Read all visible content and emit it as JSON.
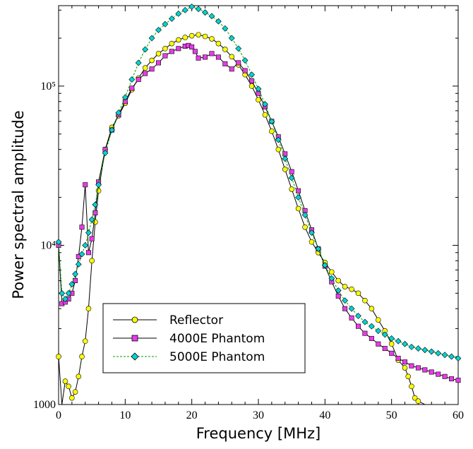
{
  "chart_data": {
    "type": "line",
    "xlabel": "Frequency [MHz]",
    "ylabel": "Power spectral amplitude",
    "xlim": [
      0,
      60
    ],
    "ylim": [
      1000,
      320000
    ],
    "y_scale": "log",
    "x_ticks": [
      0,
      10,
      20,
      30,
      40,
      50,
      60
    ],
    "x_tick_labels": [
      "0",
      "10",
      "20",
      "30",
      "40",
      "50",
      "60"
    ],
    "y_ticks": [
      1000,
      10000,
      100000
    ],
    "y_tick_labels": [
      "1000",
      "10⁴",
      "10⁵"
    ],
    "grid": false,
    "legend_position": "lower-left",
    "series": [
      {
        "name": "Reflector",
        "color": "#ffff00",
        "marker": "circle",
        "x": [
          0,
          0.5,
          1,
          1.5,
          2,
          2.5,
          3,
          3.5,
          4,
          4.5,
          5,
          5.5,
          6,
          7,
          8,
          9,
          10,
          11,
          12,
          13,
          14,
          15,
          16,
          17,
          18,
          19,
          20,
          21,
          22,
          23,
          24,
          25,
          26,
          27,
          28,
          29,
          30,
          31,
          32,
          33,
          34,
          35,
          36,
          37,
          38,
          39,
          40,
          41,
          42,
          43,
          44,
          45,
          46,
          47,
          48,
          49,
          50,
          51,
          52,
          52.5,
          53,
          53.5,
          54,
          55,
          56
        ],
        "y": [
          2000,
          900,
          1400,
          1300,
          1100,
          1200,
          1500,
          2000,
          2500,
          4000,
          8000,
          14000,
          22000,
          40000,
          55000,
          65000,
          78000,
          95000,
          112000,
          130000,
          145000,
          160000,
          172000,
          185000,
          195000,
          202000,
          207000,
          210000,
          205000,
          198000,
          185000,
          170000,
          153000,
          136000,
          118000,
          100000,
          82000,
          66000,
          52000,
          40000,
          30000,
          22500,
          17000,
          13000,
          10500,
          9000,
          7800,
          6800,
          6000,
          5500,
          5300,
          5000,
          4500,
          4000,
          3400,
          2900,
          2400,
          1900,
          1700,
          1500,
          1300,
          1100,
          1050,
          950,
          900
        ]
      },
      {
        "name": "4000E Phantom",
        "color": "#e83be8",
        "marker": "square",
        "x": [
          0,
          0.5,
          1,
          1.5,
          2,
          2.5,
          3,
          3.5,
          4,
          4.5,
          5,
          5.5,
          6,
          7,
          8,
          9,
          10,
          11,
          12,
          13,
          14,
          15,
          16,
          17,
          18,
          19,
          19.5,
          20,
          20.5,
          21,
          22,
          23,
          24,
          25,
          26,
          27,
          28,
          29,
          30,
          31,
          32,
          33,
          34,
          35,
          36,
          37,
          38,
          39,
          40,
          41,
          42,
          43,
          44,
          45,
          46,
          47,
          48,
          49,
          50,
          51,
          52,
          53,
          54,
          55,
          56,
          57,
          58,
          59,
          60
        ],
        "y": [
          10000,
          4300,
          4400,
          4600,
          5000,
          6000,
          8500,
          13000,
          24000,
          9000,
          11000,
          16000,
          25000,
          40000,
          53000,
          66000,
          80000,
          97000,
          110000,
          120000,
          128000,
          140000,
          155000,
          165000,
          172000,
          178000,
          180000,
          176000,
          165000,
          150000,
          152000,
          160000,
          152000,
          138000,
          128000,
          140000,
          125000,
          108000,
          90000,
          74000,
          60000,
          48000,
          37500,
          29000,
          22000,
          16500,
          12500,
          9500,
          7400,
          5900,
          4800,
          4000,
          3500,
          3100,
          2800,
          2600,
          2400,
          2250,
          2100,
          1950,
          1850,
          1750,
          1700,
          1650,
          1600,
          1550,
          1500,
          1450,
          1420
        ]
      },
      {
        "name": "5000E Phantom",
        "color": "#00d4d4",
        "marker": "diamond",
        "x": [
          0,
          0.5,
          1,
          1.5,
          2,
          2.5,
          3,
          3.5,
          4,
          4.5,
          5,
          5.5,
          6,
          7,
          8,
          9,
          10,
          11,
          12,
          13,
          14,
          15,
          16,
          17,
          18,
          19,
          20,
          21,
          22,
          23,
          24,
          25,
          26,
          27,
          28,
          29,
          30,
          31,
          32,
          33,
          34,
          35,
          36,
          37,
          38,
          39,
          40,
          41,
          42,
          43,
          44,
          45,
          46,
          47,
          48,
          49,
          50,
          51,
          52,
          53,
          54,
          55,
          56,
          57,
          58,
          59,
          60
        ],
        "y": [
          10500,
          5000,
          4600,
          5000,
          5700,
          6600,
          7600,
          8800,
          10000,
          12000,
          14500,
          18000,
          24000,
          38000,
          53000,
          68000,
          85000,
          110000,
          140000,
          170000,
          200000,
          225000,
          245000,
          265000,
          285000,
          300000,
          315000,
          305000,
          290000,
          275000,
          255000,
          230000,
          200000,
          172000,
          145000,
          118000,
          96000,
          77000,
          60000,
          46000,
          35000,
          26500,
          20000,
          15500,
          12000,
          9500,
          7500,
          6200,
          5200,
          4500,
          4000,
          3600,
          3300,
          3100,
          2900,
          2750,
          2600,
          2500,
          2400,
          2300,
          2250,
          2200,
          2150,
          2100,
          2050,
          2000,
          1950
        ]
      }
    ]
  }
}
